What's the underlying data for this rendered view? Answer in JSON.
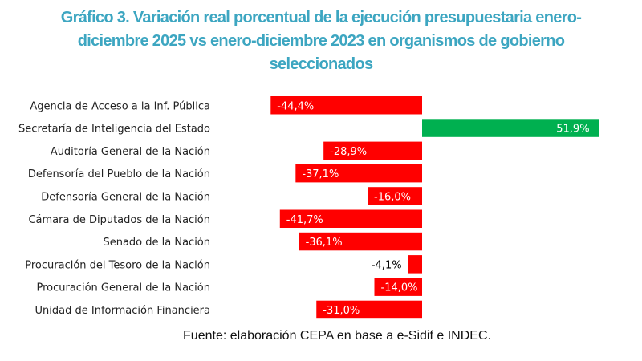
{
  "title": "Gráfico 3. Variación real porcentual de la ejecución presupuestaria enero-diciembre 2025 vs enero-diciembre 2023 en organismos de gobierno seleccionados",
  "source": "Fuente: elaboración CEPA en base a e-Sidif e INDEC.",
  "chart_data": {
    "type": "bar",
    "orientation": "horizontal",
    "title": "Gráfico 3. Variación real porcentual de la ejecución presupuestaria enero-diciembre 2025 vs enero-diciembre 2023 en organismos de gobierno seleccionados",
    "categories": [
      "Agencia de Acceso a la Inf. Pública",
      "Secretaría de Inteligencia del Estado",
      "Auditoría General de la Nación",
      "Defensoría del Pueblo de la Nación",
      "Defensoría General de la Nación",
      "Cámara de Diputados de la Nación",
      "Senado de la Nación",
      "Procuración del Tesoro de la Nación",
      "Procuración General de la Nación",
      "Unidad de Información Financiera"
    ],
    "values": [
      -44.4,
      51.9,
      -28.9,
      -37.1,
      -16.0,
      -41.7,
      -36.1,
      -4.1,
      -14.0,
      -31.0
    ],
    "data_labels": [
      "-44,4%",
      "51,9%",
      "-28,9%",
      "-37,1%",
      "-16,0%",
      "-41,7%",
      "-36,1%",
      "-4,1%",
      "-14,0%",
      "-31,0%"
    ],
    "colors": {
      "negative": "#ff0000",
      "positive": "#00b050"
    },
    "grid": false,
    "legend": "none"
  }
}
